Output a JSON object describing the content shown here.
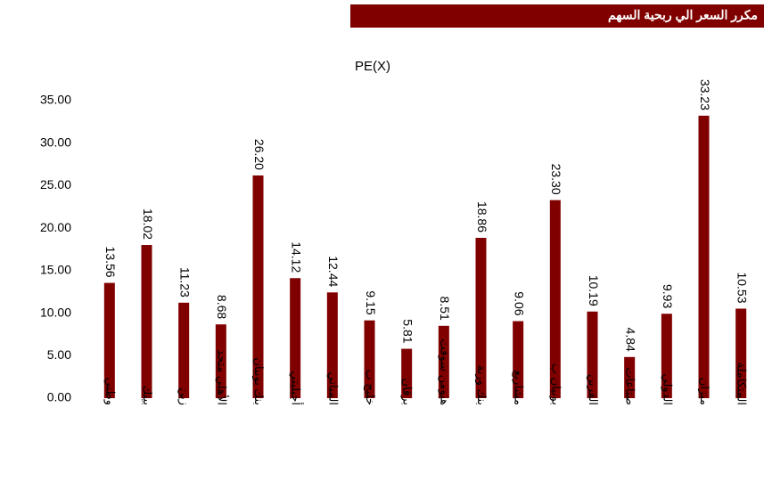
{
  "header": {
    "title": "مكرر السعر الي ربحية السهم"
  },
  "chart_data": {
    "type": "bar",
    "title": "PE(X)",
    "categories": [
      "وطني",
      "بيتك",
      "زين",
      "الأهلي متحد",
      "بنك بوبيان",
      "أجيليتي",
      "المباني",
      "خليج ب",
      "برقان",
      "هيومن سوفت",
      "بنك وربة",
      "مشاريع",
      "بوبيان ب",
      "القرين",
      "صناعات",
      "الدولي",
      "ميزان",
      "المتكاملة"
    ],
    "values": [
      13.56,
      18.02,
      11.23,
      8.68,
      26.2,
      14.12,
      12.44,
      9.15,
      5.81,
      8.51,
      18.86,
      9.06,
      23.3,
      10.19,
      4.84,
      9.93,
      33.23,
      10.53
    ],
    "value_labels": [
      "13.56",
      "18.02",
      "11.23",
      "8.68",
      "26.20",
      "14.12",
      "12.44",
      "9.15",
      "5.81",
      "8.51",
      "18.86",
      "9.06",
      "23.30",
      "10.19",
      "4.84",
      "9.93",
      "33.23",
      "10.53"
    ],
    "color": "#800000",
    "ylim": [
      0,
      35
    ],
    "yticks": [
      {
        "value": 0,
        "label": "0.00"
      },
      {
        "value": 5,
        "label": "5.00"
      },
      {
        "value": 10,
        "label": "10.00"
      },
      {
        "value": 15,
        "label": "15.00"
      },
      {
        "value": 20,
        "label": "20.00"
      },
      {
        "value": 25,
        "label": "25.00"
      },
      {
        "value": 30,
        "label": "30.00"
      },
      {
        "value": 35,
        "label": "35.00"
      }
    ],
    "grid": false
  }
}
